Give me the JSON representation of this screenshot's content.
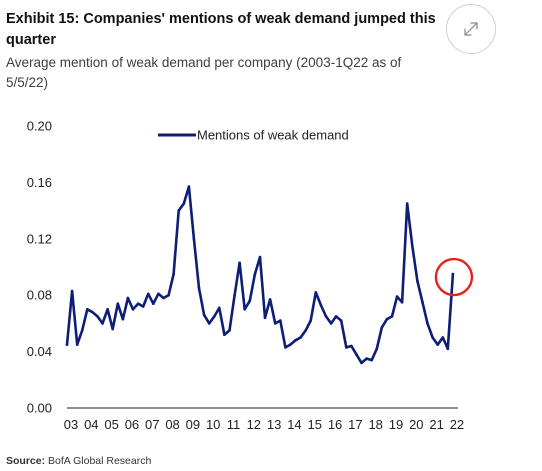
{
  "header": {
    "title": "Exhibit 15: Companies' mentions of weak demand jumped this quarter",
    "subtitle": "Average mention of weak demand per company (2003-1Q22 as of 5/5/22)",
    "expand_icon": "expand-arrows-icon"
  },
  "footer": {
    "source_label": "Source:",
    "source_text": "BofA Global Research"
  },
  "colors": {
    "series": "#0e1e76",
    "highlight_circle": "#e8201c"
  },
  "chart_data": {
    "type": "line",
    "title": "",
    "xlabel": "",
    "ylabel": "",
    "ylim": [
      0,
      0.2
    ],
    "yticks": [
      "0.00",
      "0.04",
      "0.08",
      "0.12",
      "0.16",
      "0.20"
    ],
    "xticks": [
      "03",
      "04",
      "05",
      "06",
      "07",
      "08",
      "09",
      "10",
      "11",
      "12",
      "13",
      "14",
      "15",
      "16",
      "17",
      "18",
      "19",
      "20",
      "21",
      "22"
    ],
    "xlim": [
      2003,
      2022.25
    ],
    "grid": false,
    "legend_position": "top-center",
    "annotation": "red circle around the 1Q22 value",
    "series": [
      {
        "name": "Mentions of weak demand",
        "x": [
          2003.0,
          2003.25,
          2003.5,
          2003.75,
          2004.0,
          2004.25,
          2004.5,
          2004.75,
          2005.0,
          2005.25,
          2005.5,
          2005.75,
          2006.0,
          2006.25,
          2006.5,
          2006.75,
          2007.0,
          2007.25,
          2007.5,
          2007.75,
          2008.0,
          2008.25,
          2008.5,
          2008.75,
          2009.0,
          2009.25,
          2009.5,
          2009.75,
          2010.0,
          2010.25,
          2010.5,
          2010.75,
          2011.0,
          2011.25,
          2011.5,
          2011.75,
          2012.0,
          2012.25,
          2012.5,
          2012.75,
          2013.0,
          2013.25,
          2013.5,
          2013.75,
          2014.0,
          2014.25,
          2014.5,
          2014.75,
          2015.0,
          2015.25,
          2015.5,
          2015.75,
          2016.0,
          2016.25,
          2016.5,
          2016.75,
          2017.0,
          2017.25,
          2017.5,
          2017.75,
          2018.0,
          2018.25,
          2018.5,
          2018.75,
          2019.0,
          2019.25,
          2019.5,
          2019.75,
          2020.0,
          2020.25,
          2020.5,
          2020.75,
          2021.0,
          2021.25,
          2021.5,
          2021.75,
          2022.0
        ],
        "values": [
          0.045,
          0.083,
          0.045,
          0.055,
          0.07,
          0.068,
          0.065,
          0.06,
          0.07,
          0.056,
          0.074,
          0.063,
          0.078,
          0.07,
          0.074,
          0.072,
          0.081,
          0.074,
          0.081,
          0.078,
          0.08,
          0.095,
          0.14,
          0.145,
          0.157,
          0.12,
          0.085,
          0.066,
          0.06,
          0.065,
          0.071,
          0.052,
          0.055,
          0.08,
          0.103,
          0.07,
          0.076,
          0.095,
          0.107,
          0.064,
          0.077,
          0.06,
          0.062,
          0.043,
          0.045,
          0.048,
          0.05,
          0.055,
          0.062,
          0.082,
          0.073,
          0.065,
          0.06,
          0.065,
          0.062,
          0.043,
          0.044,
          0.038,
          0.032,
          0.035,
          0.034,
          0.042,
          0.057,
          0.063,
          0.065,
          0.079,
          0.075,
          0.145,
          0.115,
          0.09,
          0.075,
          0.06,
          0.05,
          0.045,
          0.05,
          0.042,
          0.095
        ]
      }
    ]
  }
}
